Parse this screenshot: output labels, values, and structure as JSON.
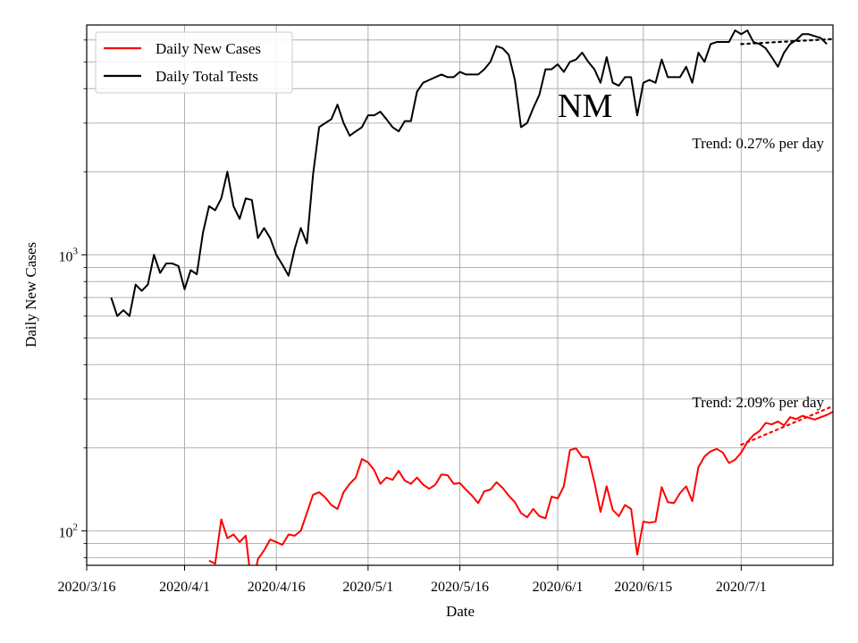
{
  "chart_data": {
    "type": "line",
    "title": "",
    "annotation_label": "NM",
    "xlabel": "Date",
    "ylabel": "Daily New Cases",
    "y_scale": "log",
    "ylim": [
      75,
      6800
    ],
    "xlim": [
      "2020-03-16",
      "2020-07-16"
    ],
    "grid": true,
    "legend_position": "top-left",
    "x_ticks": [
      {
        "date": "2020-03-16",
        "label": "2020/3/16"
      },
      {
        "date": "2020-04-01",
        "label": "2020/4/1"
      },
      {
        "date": "2020-04-16",
        "label": "2020/4/16"
      },
      {
        "date": "2020-05-01",
        "label": "2020/5/1"
      },
      {
        "date": "2020-05-16",
        "label": "2020/5/16"
      },
      {
        "date": "2020-06-01",
        "label": "2020/6/1"
      },
      {
        "date": "2020-06-15",
        "label": "2020/6/15"
      },
      {
        "date": "2020-07-01",
        "label": "2020/7/1"
      }
    ],
    "y_major_ticks": [
      {
        "value": 100,
        "base": "10",
        "exp": "2"
      },
      {
        "value": 1000,
        "base": "10",
        "exp": "3"
      }
    ],
    "y_minor_ticks": [
      80,
      90,
      200,
      300,
      400,
      500,
      600,
      700,
      800,
      900,
      2000,
      3000,
      4000,
      5000,
      6000
    ],
    "series": [
      {
        "name": "Daily New Cases",
        "color": "#ff0000",
        "start_date": "2020-04-05",
        "values": [
          78,
          76,
          110,
          94,
          97,
          91,
          96,
          62,
          79,
          85,
          93,
          91,
          89,
          97,
          96,
          100,
          116,
          135,
          138,
          132,
          124,
          120,
          138,
          148,
          156,
          182,
          177,
          166,
          148,
          156,
          153,
          165,
          152,
          148,
          156,
          147,
          142,
          147,
          160,
          159,
          148,
          149,
          141,
          134,
          126,
          139,
          141,
          150,
          143,
          134,
          127,
          116,
          112,
          120,
          113,
          111,
          133,
          131,
          145,
          196,
          199,
          185,
          185,
          150,
          117,
          145,
          119,
          113,
          124,
          120,
          82,
          108,
          107,
          108,
          144,
          127,
          126,
          137,
          145,
          128,
          170,
          186,
          194,
          198,
          192,
          176,
          181,
          192,
          210,
          222,
          230,
          246,
          243,
          249,
          241,
          258,
          254,
          261,
          257,
          253,
          258,
          263,
          270
        ]
      },
      {
        "name": "Daily Total Tests",
        "color": "#000000",
        "start_date": "2020-03-20",
        "values": [
          700,
          600,
          630,
          600,
          780,
          740,
          780,
          1000,
          860,
          930,
          930,
          910,
          750,
          880,
          850,
          1200,
          1500,
          1450,
          1600,
          2000,
          1500,
          1350,
          1600,
          1580,
          1150,
          1250,
          1150,
          1000,
          920,
          840,
          1050,
          1250,
          1100,
          1950,
          2900,
          3000,
          3100,
          3500,
          3000,
          2700,
          2800,
          2900,
          3200,
          3200,
          3300,
          3100,
          2900,
          2800,
          3050,
          3050,
          3900,
          4200,
          4300,
          4400,
          4500,
          4400,
          4400,
          4600,
          4500,
          4500,
          4500,
          4700,
          5000,
          5700,
          5600,
          5300,
          4300,
          2900,
          3000,
          3400,
          3800,
          4700,
          4700,
          4900,
          4600,
          5000,
          5100,
          5400,
          5000,
          4700,
          4200,
          5200,
          4200,
          4100,
          4400,
          4400,
          3200,
          4200,
          4300,
          4200,
          5100,
          4400,
          4400,
          4400,
          4800,
          4200,
          5400,
          5000,
          5800,
          5900,
          5900,
          5900,
          6500,
          6300,
          6500,
          5900,
          5800,
          5600,
          5200,
          4800,
          5400,
          5800,
          6000,
          6300,
          6300,
          6200,
          6100,
          5800
        ]
      }
    ],
    "trendlines": [
      {
        "series": "Daily New Cases",
        "color": "#ff0000",
        "start": [
          "2020-07-01",
          205
        ],
        "end": [
          "2020-07-16",
          283
        ],
        "label": "Trend: 2.09% per day"
      },
      {
        "series": "Daily Total Tests",
        "color": "#000000",
        "start": [
          "2020-07-01",
          5800
        ],
        "end": [
          "2020-07-16",
          6050
        ],
        "label": "Trend: 0.27% per day"
      }
    ]
  }
}
